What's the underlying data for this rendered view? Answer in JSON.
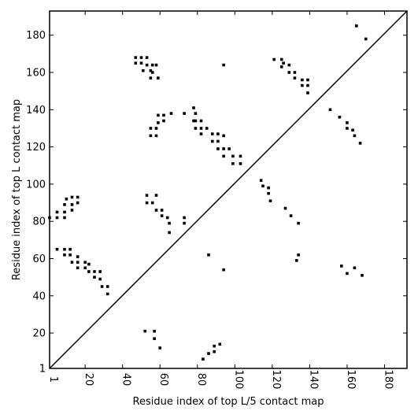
{
  "chart_data": {
    "type": "scatter",
    "xlabel": "Residue index of top L/5 contact map",
    "ylabel": "Residue index of top L contact map",
    "xlim": [
      1,
      192
    ],
    "ylim": [
      1,
      193
    ],
    "x_ticks": [
      1,
      20,
      40,
      60,
      80,
      100,
      120,
      140,
      160,
      180
    ],
    "y_ticks": [
      1,
      20,
      40,
      60,
      80,
      100,
      120,
      140,
      160,
      180
    ],
    "diagonal": true,
    "grid": false,
    "series": [
      {
        "marker": "square",
        "color": "#000000",
        "points": [
          [
            47,
            168
          ],
          [
            50,
            168
          ],
          [
            53,
            168
          ],
          [
            47,
            165
          ],
          [
            50,
            165
          ],
          [
            53,
            164
          ],
          [
            56,
            164
          ],
          [
            58,
            164
          ],
          [
            51,
            161
          ],
          [
            55,
            161
          ],
          [
            56,
            160
          ],
          [
            55,
            157
          ],
          [
            59,
            157
          ],
          [
            94,
            164
          ],
          [
            121,
            167
          ],
          [
            125,
            167
          ],
          [
            126,
            165
          ],
          [
            125,
            163
          ],
          [
            129,
            164
          ],
          [
            129,
            160
          ],
          [
            132,
            160
          ],
          [
            132,
            157
          ],
          [
            136,
            156
          ],
          [
            139,
            156
          ],
          [
            136,
            153
          ],
          [
            139,
            153
          ],
          [
            139,
            149
          ],
          [
            78,
            141
          ],
          [
            73,
            138
          ],
          [
            79,
            138
          ],
          [
            66,
            138
          ],
          [
            62,
            137
          ],
          [
            62,
            134
          ],
          [
            59,
            133
          ],
          [
            59,
            137
          ],
          [
            78,
            134
          ],
          [
            79,
            134
          ],
          [
            82,
            134
          ],
          [
            82,
            130
          ],
          [
            85,
            130
          ],
          [
            79,
            130
          ],
          [
            82,
            127
          ],
          [
            88,
            127
          ],
          [
            91,
            127
          ],
          [
            94,
            126
          ],
          [
            88,
            123
          ],
          [
            91,
            123
          ],
          [
            91,
            119
          ],
          [
            94,
            119
          ],
          [
            97,
            119
          ],
          [
            94,
            115
          ],
          [
            99,
            115
          ],
          [
            103,
            115
          ],
          [
            99,
            111
          ],
          [
            103,
            111
          ],
          [
            58,
            130
          ],
          [
            55,
            130
          ],
          [
            55,
            126
          ],
          [
            58,
            126
          ],
          [
            151,
            140
          ],
          [
            156,
            136
          ],
          [
            160,
            133
          ],
          [
            160,
            130
          ],
          [
            163,
            129
          ],
          [
            164,
            126
          ],
          [
            167,
            122
          ],
          [
            165,
            185
          ],
          [
            170,
            178
          ],
          [
            114,
            102
          ],
          [
            115,
            99
          ],
          [
            118,
            98
          ],
          [
            118,
            95
          ],
          [
            119,
            91
          ],
          [
            127,
            87
          ],
          [
            130,
            83
          ],
          [
            134,
            79
          ],
          [
            134,
            62
          ],
          [
            133,
            59
          ],
          [
            53,
            94
          ],
          [
            58,
            94
          ],
          [
            53,
            90
          ],
          [
            56,
            90
          ],
          [
            58,
            86
          ],
          [
            61,
            86
          ],
          [
            61,
            83
          ],
          [
            64,
            82
          ],
          [
            65,
            79
          ],
          [
            65,
            74
          ],
          [
            73,
            82
          ],
          [
            73,
            79
          ],
          [
            1,
            82
          ],
          [
            5,
            82
          ],
          [
            5,
            85
          ],
          [
            9,
            85
          ],
          [
            9,
            82
          ],
          [
            10,
            92
          ],
          [
            9,
            89
          ],
          [
            13,
            89
          ],
          [
            13,
            93
          ],
          [
            16,
            93
          ],
          [
            16,
            90
          ],
          [
            13,
            86
          ],
          [
            5,
            65
          ],
          [
            9,
            65
          ],
          [
            12,
            65
          ],
          [
            9,
            62
          ],
          [
            12,
            62
          ],
          [
            13,
            58
          ],
          [
            16,
            61
          ],
          [
            16,
            58
          ],
          [
            16,
            55
          ],
          [
            20,
            58
          ],
          [
            20,
            55
          ],
          [
            22,
            57
          ],
          [
            22,
            53
          ],
          [
            25,
            53
          ],
          [
            28,
            53
          ],
          [
            25,
            50
          ],
          [
            28,
            49
          ],
          [
            29,
            45
          ],
          [
            32,
            45
          ],
          [
            32,
            41
          ],
          [
            86,
            62
          ],
          [
            94,
            54
          ],
          [
            157,
            56
          ],
          [
            164,
            55
          ],
          [
            160,
            52
          ],
          [
            168,
            51
          ],
          [
            52,
            21
          ],
          [
            57,
            21
          ],
          [
            57,
            17
          ],
          [
            60,
            12
          ],
          [
            83,
            6
          ],
          [
            86,
            9
          ],
          [
            89,
            10
          ],
          [
            89,
            13
          ],
          [
            92,
            14
          ]
        ]
      }
    ]
  }
}
